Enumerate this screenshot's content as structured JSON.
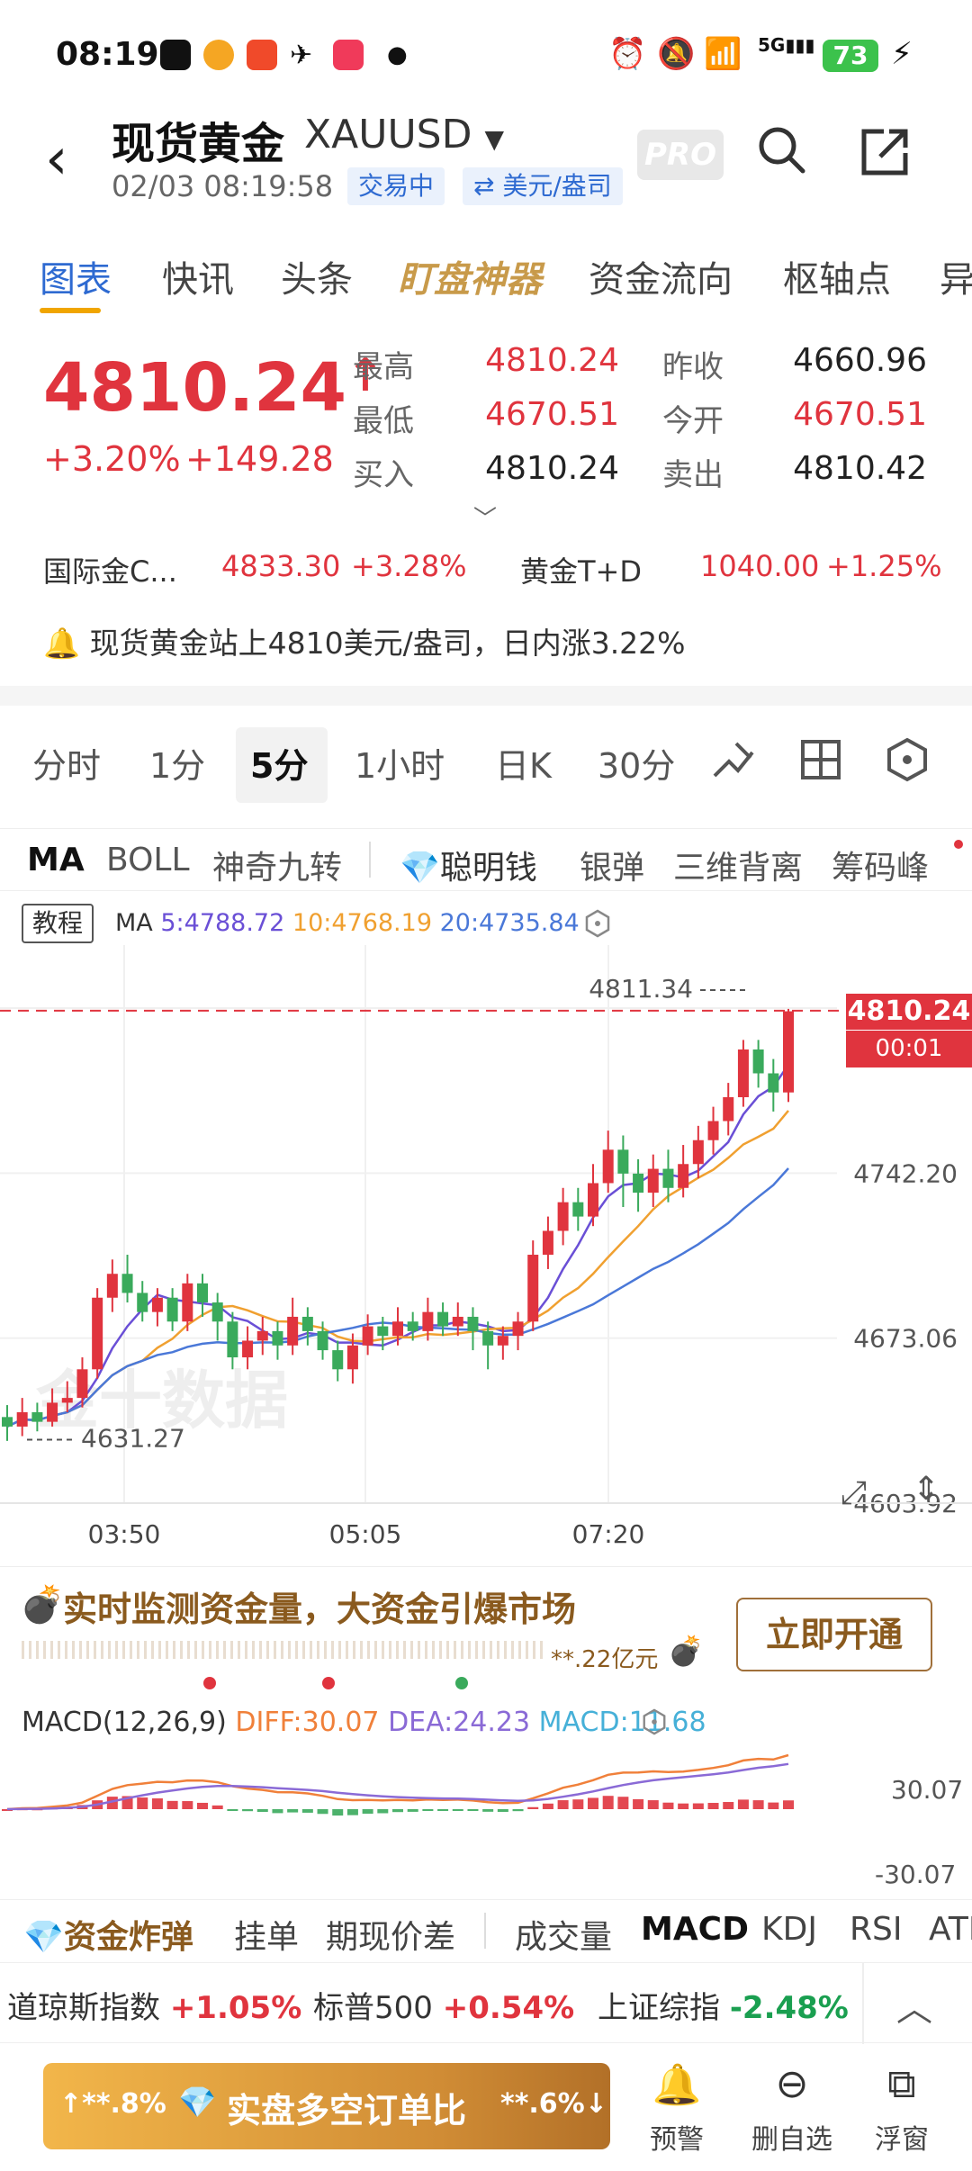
{
  "status_bar": {
    "time": "08:19",
    "battery": "73"
  },
  "header": {
    "title": "现货黄金",
    "symbol": "XAUUSD",
    "datetime": "02/03 08:19:58",
    "tag_trading": "交易中",
    "tag_unit": "⇄ 美元/盎司",
    "pro": "PRO"
  },
  "tabs": [
    "图表",
    "快讯",
    "头条",
    "盯盘神器",
    "资金流向",
    "枢轴点",
    "异"
  ],
  "quote": {
    "price": "4810.24",
    "arrow": "↑",
    "change_pct": "+3.20%",
    "change_abs": "+149.28",
    "high_label": "最高",
    "high": "4810.24",
    "low_label": "最低",
    "low": "4670.51",
    "bid_label": "买入",
    "bid": "4810.24",
    "prev_label": "昨收",
    "prev": "4660.96",
    "open_label": "今开",
    "open": "4670.51",
    "ask_label": "卖出",
    "ask": "4810.42",
    "related1_name": "国际金C...",
    "related1_price": "4833.30",
    "related1_pct": "+3.28%",
    "related2_name": "黄金T+D",
    "related2_price": "1040.00",
    "related2_pct": "+1.25%",
    "alert": "现货黄金站上4810美元/盎司，日内涨3.22%"
  },
  "period_tabs": [
    "分时",
    "1分",
    "5分",
    "1小时",
    "日K",
    "30分"
  ],
  "indicator_tabs": [
    "MA",
    "BOLL",
    "神奇九转",
    "聪明钱",
    "银弹",
    "三维背离",
    "筹码峰"
  ],
  "chart": {
    "tutorial": "教程",
    "ma_label": "MA",
    "ma5": "5:4788.72",
    "ma10": "10:4768.19",
    "ma20": "20:4735.84",
    "high_marker": "4811.34",
    "low_marker": "4631.27",
    "current_price": "4810.24",
    "countdown": "00:01",
    "y_ticks": [
      "4811.34",
      "4742.20",
      "4673.06",
      "4603.92"
    ],
    "x_ticks": [
      "03:50",
      "05:05",
      "07:20"
    ],
    "watermark": "金十数据",
    "colors": {
      "up": "#e0343e",
      "down": "#3aaa5c",
      "ma5": "#6a4fd6",
      "ma10": "#f0a030",
      "ma20": "#4a78d8"
    }
  },
  "chart_data": {
    "type": "candlestick",
    "ylim": [
      4603.92,
      4811.34
    ],
    "x_ticks": [
      "03:50",
      "05:05",
      "07:20"
    ],
    "candles": [
      [
        4640,
        4636,
        4645,
        4630
      ],
      [
        4636,
        4642,
        4648,
        4632
      ],
      [
        4642,
        4638,
        4646,
        4634
      ],
      [
        4638,
        4646,
        4652,
        4636
      ],
      [
        4646,
        4648,
        4655,
        4642
      ],
      [
        4648,
        4660,
        4665,
        4644
      ],
      [
        4660,
        4690,
        4694,
        4656
      ],
      [
        4690,
        4700,
        4706,
        4684
      ],
      [
        4700,
        4692,
        4708,
        4688
      ],
      [
        4692,
        4684,
        4697,
        4680
      ],
      [
        4684,
        4690,
        4694,
        4678
      ],
      [
        4690,
        4680,
        4694,
        4676
      ],
      [
        4680,
        4696,
        4700,
        4676
      ],
      [
        4696,
        4688,
        4700,
        4682
      ],
      [
        4688,
        4680,
        4692,
        4672
      ],
      [
        4680,
        4665,
        4684,
        4660
      ],
      [
        4665,
        4672,
        4678,
        4660
      ],
      [
        4672,
        4676,
        4682,
        4666
      ],
      [
        4676,
        4670,
        4680,
        4664
      ],
      [
        4670,
        4682,
        4690,
        4666
      ],
      [
        4682,
        4676,
        4686,
        4670
      ],
      [
        4676,
        4668,
        4680,
        4664
      ],
      [
        4668,
        4660,
        4672,
        4655
      ],
      [
        4660,
        4670,
        4675,
        4654
      ],
      [
        4670,
        4678,
        4683,
        4666
      ],
      [
        4678,
        4674,
        4682,
        4668
      ],
      [
        4674,
        4680,
        4686,
        4670
      ],
      [
        4680,
        4676,
        4684,
        4672
      ],
      [
        4676,
        4684,
        4690,
        4672
      ],
      [
        4684,
        4678,
        4688,
        4674
      ],
      [
        4678,
        4682,
        4688,
        4674
      ],
      [
        4682,
        4676,
        4686,
        4668
      ],
      [
        4676,
        4670,
        4680,
        4660
      ],
      [
        4670,
        4674,
        4678,
        4664
      ],
      [
        4674,
        4680,
        4684,
        4668
      ],
      [
        4680,
        4708,
        4714,
        4676
      ],
      [
        4708,
        4718,
        4724,
        4702
      ],
      [
        4718,
        4730,
        4736,
        4712
      ],
      [
        4730,
        4724,
        4736,
        4718
      ],
      [
        4724,
        4738,
        4746,
        4720
      ],
      [
        4738,
        4752,
        4760,
        4734
      ],
      [
        4752,
        4742,
        4758,
        4728
      ],
      [
        4742,
        4734,
        4748,
        4726
      ],
      [
        4734,
        4744,
        4750,
        4728
      ],
      [
        4744,
        4736,
        4752,
        4730
      ],
      [
        4736,
        4746,
        4754,
        4732
      ],
      [
        4746,
        4756,
        4762,
        4740
      ],
      [
        4756,
        4764,
        4770,
        4750
      ],
      [
        4764,
        4774,
        4780,
        4758
      ],
      [
        4774,
        4794,
        4798,
        4770
      ],
      [
        4794,
        4784,
        4798,
        4778
      ],
      [
        4784,
        4776,
        4790,
        4768
      ],
      [
        4776,
        4810,
        4811,
        4772
      ]
    ],
    "ma5_last": 4788.72,
    "ma10_last": 4768.19,
    "ma20_last": 4735.84
  },
  "banner": {
    "text": "实时监测资金量，大资金引爆市场",
    "amount": "**.22亿元",
    "button": "立即开通"
  },
  "macd": {
    "label": "MACD(12,26,9)",
    "diff": "DIFF:30.07",
    "dea": "DEA:24.23",
    "macd": "MACD:11.68",
    "y_top": "30.07",
    "y_bottom": "-30.07"
  },
  "bottom_tabs": [
    "资金炸弹",
    "挂单",
    "期现价差",
    "成交量",
    "MACD",
    "KDJ",
    "RSI",
    "ATR"
  ],
  "indices": {
    "i1_name": "道琼斯指数",
    "i1_pct": "+1.05%",
    "i2_name": "标普500",
    "i2_pct": "+0.54%",
    "i3_name": "上证综指",
    "i3_pct": "-2.48%"
  },
  "bottom_bar": {
    "left_pct": "↑**.8%",
    "label": "实盘多空订单比",
    "right_pct": "**.6%↓",
    "nav_alert": "预警",
    "nav_remove": "删自选",
    "nav_float": "浮窗"
  }
}
